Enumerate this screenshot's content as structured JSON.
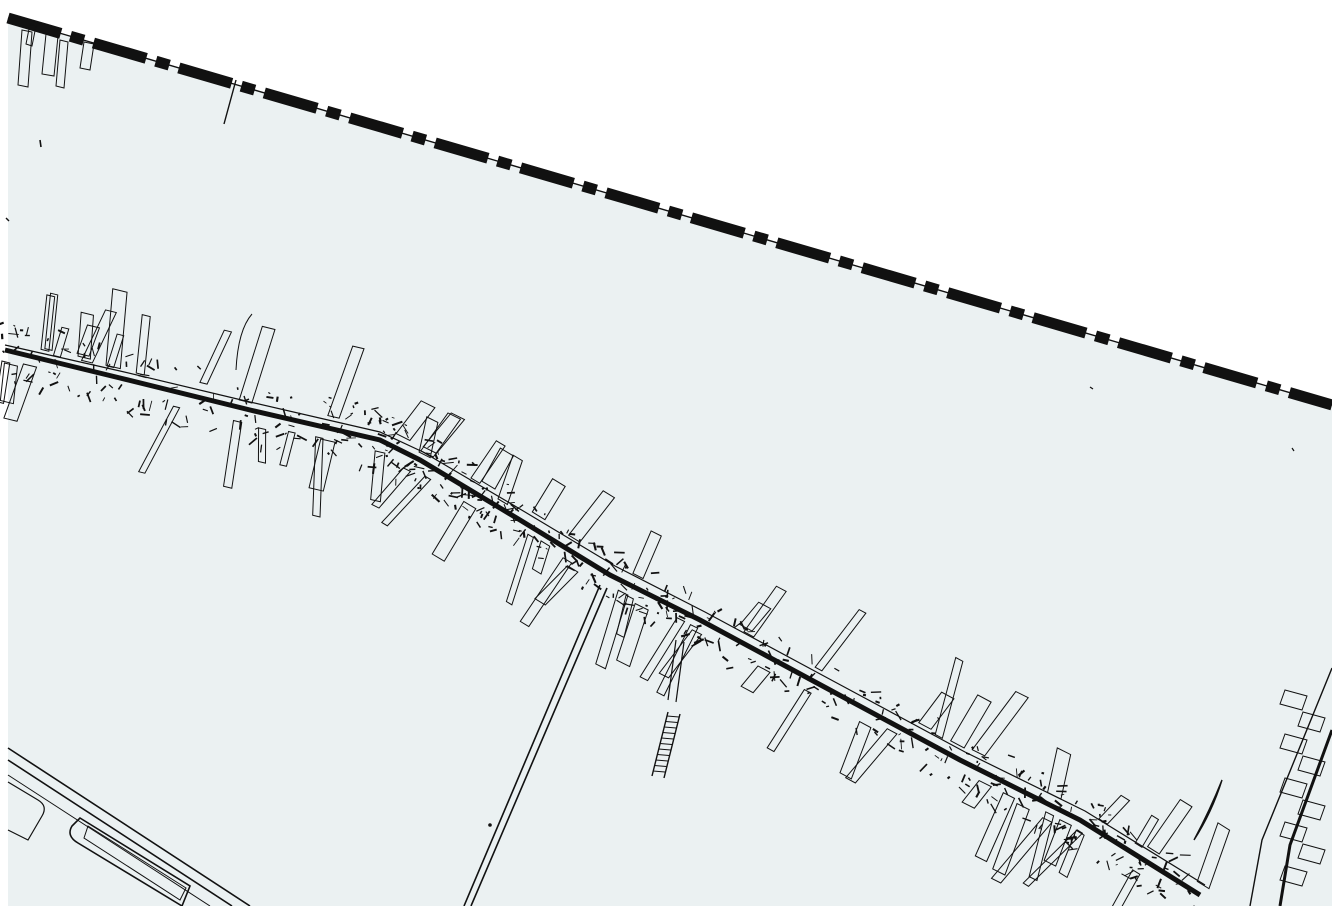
{
  "map": {
    "colors": {
      "page_background": "#ffffff",
      "land_fill": "#ebf1f2",
      "ink": "#111111",
      "boundary_gap": "#ffffff"
    },
    "features": [
      {
        "kind": "administrative-boundary",
        "style": "bold-dash-dot-line",
        "note_visible": false
      },
      {
        "kind": "village-street-with-ribbon-development",
        "style": "dense-black-linework"
      },
      {
        "kind": "straight-side-road",
        "style": "double-line"
      },
      {
        "kind": "road-with-parcel-outlines",
        "style": "double-line"
      },
      {
        "kind": "bridge-or-ramp-hatching",
        "style": "ladder-hatch"
      }
    ]
  }
}
